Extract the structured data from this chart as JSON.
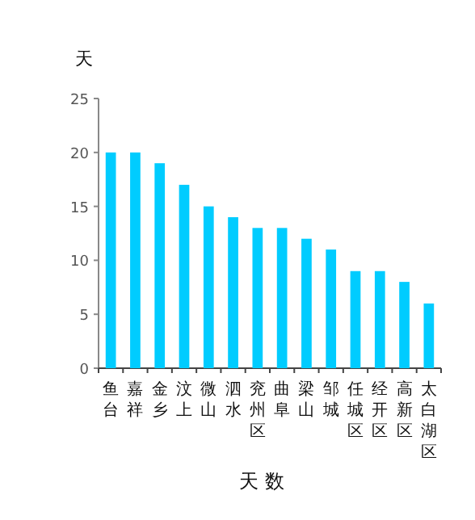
{
  "chart_data": {
    "type": "bar",
    "ylabel": "天",
    "xlabel": "天 数",
    "categories": [
      "鱼台",
      "嘉祥",
      "金乡",
      "汶上",
      "微山",
      "泗水",
      "兖州区",
      "曲阜",
      "梁山",
      "邹城",
      "任城区",
      "经开区",
      "高新区",
      "太白湖区"
    ],
    "values": [
      20,
      20,
      19,
      17,
      15,
      14,
      13,
      13,
      12,
      11,
      9,
      9,
      8,
      6
    ],
    "color": "#00ccff",
    "ylim": [
      0,
      25
    ],
    "yticks": [
      0,
      5,
      10,
      15,
      20,
      25
    ]
  }
}
